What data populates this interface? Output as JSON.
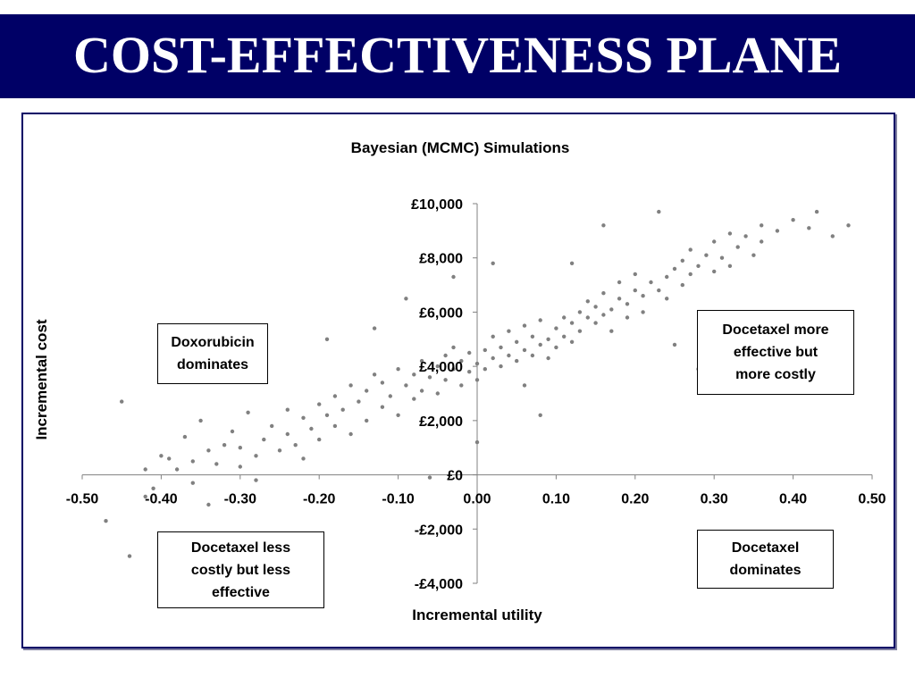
{
  "page": {
    "title": "COST-EFFECTIVENESS PLANE"
  },
  "colors": {
    "title_bar": "#000066",
    "title_text": "#ffffff",
    "frame": "#000066",
    "points": "#808080"
  },
  "chart_data": {
    "type": "scatter",
    "title": "Bayesian (MCMC) Simulations",
    "xlabel": "Incremental utility",
    "ylabel": "Incremental cost",
    "xlim": [
      -0.5,
      0.5
    ],
    "ylim": [
      -4000,
      10000
    ],
    "x_ticks": [
      -0.5,
      -0.4,
      -0.3,
      -0.2,
      -0.1,
      0.0,
      0.1,
      0.2,
      0.3,
      0.4,
      0.5
    ],
    "x_tick_labels": [
      "-0.50",
      "-0.40",
      "-0.30",
      "-0.20",
      "-0.10",
      "0.00",
      "0.10",
      "0.20",
      "0.30",
      "0.40",
      "0.50"
    ],
    "y_ticks": [
      -4000,
      -2000,
      0,
      2000,
      4000,
      6000,
      8000,
      10000
    ],
    "y_tick_labels": [
      "-£4,000",
      "-£2,000",
      "£0",
      "£2,000",
      "£4,000",
      "£6,000",
      "£8,000",
      "£10,000"
    ],
    "grid": false,
    "series": [
      {
        "points": [
          [
            -0.47,
            -1700
          ],
          [
            -0.45,
            2700
          ],
          [
            -0.44,
            -3000
          ],
          [
            -0.42,
            -800
          ],
          [
            -0.41,
            -500
          ],
          [
            -0.4,
            700
          ],
          [
            -0.39,
            600
          ],
          [
            -0.38,
            200
          ],
          [
            -0.37,
            1400
          ],
          [
            -0.36,
            -300
          ],
          [
            -0.36,
            500
          ],
          [
            -0.35,
            2000
          ],
          [
            -0.34,
            -1100
          ],
          [
            -0.34,
            900
          ],
          [
            -0.33,
            400
          ],
          [
            -0.32,
            1100
          ],
          [
            -0.31,
            1600
          ],
          [
            -0.3,
            300
          ],
          [
            -0.3,
            1000
          ],
          [
            -0.29,
            2300
          ],
          [
            -0.28,
            700
          ],
          [
            -0.28,
            -200
          ],
          [
            -0.27,
            1300
          ],
          [
            -0.26,
            1800
          ],
          [
            -0.25,
            900
          ],
          [
            -0.24,
            2400
          ],
          [
            -0.24,
            1500
          ],
          [
            -0.23,
            1100
          ],
          [
            -0.22,
            2100
          ],
          [
            -0.22,
            600
          ],
          [
            -0.21,
            1700
          ],
          [
            -0.2,
            2600
          ],
          [
            -0.2,
            1300
          ],
          [
            -0.19,
            2200
          ],
          [
            -0.19,
            5000
          ],
          [
            -0.18,
            1800
          ],
          [
            -0.18,
            2900
          ],
          [
            -0.17,
            2400
          ],
          [
            -0.16,
            3300
          ],
          [
            -0.16,
            1500
          ],
          [
            -0.15,
            2700
          ],
          [
            -0.14,
            3100
          ],
          [
            -0.14,
            2000
          ],
          [
            -0.13,
            3700
          ],
          [
            -0.12,
            2500
          ],
          [
            -0.12,
            3400
          ],
          [
            -0.11,
            2900
          ],
          [
            -0.1,
            3900
          ],
          [
            -0.1,
            2200
          ],
          [
            -0.09,
            3300
          ],
          [
            -0.08,
            3700
          ],
          [
            -0.08,
            2800
          ],
          [
            -0.07,
            4200
          ],
          [
            -0.07,
            3100
          ],
          [
            -0.06,
            3600
          ],
          [
            -0.05,
            4000
          ],
          [
            -0.05,
            3000
          ],
          [
            -0.04,
            4400
          ],
          [
            -0.04,
            3500
          ],
          [
            -0.03,
            3900
          ],
          [
            -0.03,
            4700
          ],
          [
            -0.02,
            3300
          ],
          [
            -0.02,
            4200
          ],
          [
            -0.01,
            3800
          ],
          [
            -0.01,
            4500
          ],
          [
            0.0,
            4100
          ],
          [
            0.0,
            3500
          ],
          [
            0.01,
            4600
          ],
          [
            0.01,
            3900
          ],
          [
            0.02,
            4300
          ],
          [
            0.02,
            5100
          ],
          [
            0.03,
            4000
          ],
          [
            0.03,
            4700
          ],
          [
            0.04,
            4400
          ],
          [
            0.04,
            5300
          ],
          [
            0.05,
            4200
          ],
          [
            0.05,
            4900
          ],
          [
            0.06,
            4600
          ],
          [
            0.06,
            5500
          ],
          [
            0.07,
            4400
          ],
          [
            0.07,
            5100
          ],
          [
            0.08,
            4800
          ],
          [
            0.08,
            5700
          ],
          [
            0.09,
            5000
          ],
          [
            0.09,
            4300
          ],
          [
            0.1,
            5400
          ],
          [
            0.1,
            4700
          ],
          [
            0.11,
            5800
          ],
          [
            0.11,
            5100
          ],
          [
            0.12,
            5600
          ],
          [
            0.12,
            4900
          ],
          [
            0.13,
            6000
          ],
          [
            0.13,
            5300
          ],
          [
            0.14,
            5800
          ],
          [
            0.14,
            6400
          ],
          [
            0.15,
            5600
          ],
          [
            0.15,
            6200
          ],
          [
            0.16,
            5900
          ],
          [
            0.16,
            6700
          ],
          [
            0.17,
            6100
          ],
          [
            0.17,
            5300
          ],
          [
            0.18,
            6500
          ],
          [
            0.18,
            7100
          ],
          [
            0.19,
            6300
          ],
          [
            0.19,
            5800
          ],
          [
            0.2,
            6800
          ],
          [
            0.2,
            7400
          ],
          [
            0.21,
            6600
          ],
          [
            0.21,
            6000
          ],
          [
            0.22,
            7100
          ],
          [
            0.23,
            6800
          ],
          [
            0.23,
            9700
          ],
          [
            0.24,
            7300
          ],
          [
            0.24,
            6500
          ],
          [
            0.25,
            7600
          ],
          [
            0.25,
            4800
          ],
          [
            0.26,
            7000
          ],
          [
            0.26,
            7900
          ],
          [
            0.27,
            7400
          ],
          [
            0.27,
            8300
          ],
          [
            0.28,
            7700
          ],
          [
            0.29,
            8100
          ],
          [
            0.3,
            7500
          ],
          [
            0.3,
            8600
          ],
          [
            0.31,
            8000
          ],
          [
            0.32,
            8900
          ],
          [
            0.32,
            7700
          ],
          [
            0.33,
            8400
          ],
          [
            0.34,
            8800
          ],
          [
            0.35,
            8100
          ],
          [
            0.36,
            9200
          ],
          [
            0.36,
            8600
          ],
          [
            0.38,
            9000
          ],
          [
            0.4,
            9400
          ],
          [
            0.42,
            9100
          ],
          [
            0.43,
            9700
          ],
          [
            0.45,
            8800
          ],
          [
            0.47,
            9200
          ],
          [
            0.16,
            9200
          ],
          [
            0.12,
            7800
          ],
          [
            -0.09,
            6500
          ],
          [
            -0.13,
            5400
          ],
          [
            -0.42,
            200
          ],
          [
            -0.06,
            -100
          ],
          [
            0.0,
            1200
          ],
          [
            0.08,
            2200
          ],
          [
            0.02,
            7800
          ],
          [
            -0.03,
            7300
          ],
          [
            0.28,
            3900
          ],
          [
            0.06,
            3300
          ]
        ]
      }
    ],
    "annotations": [
      "Doxorubicin dominates",
      "Docetaxel more effective but more costly",
      "Docetaxel less costly but less effective",
      "Docetaxel dominates"
    ]
  },
  "quadrants": {
    "top_left": [
      "Doxorubicin",
      "dominates"
    ],
    "top_right": [
      "Docetaxel more",
      "effective but",
      "more costly"
    ],
    "bottom_left": [
      "Docetaxel less",
      "costly but less",
      "effective"
    ],
    "bottom_right": [
      "Docetaxel",
      "dominates"
    ]
  }
}
